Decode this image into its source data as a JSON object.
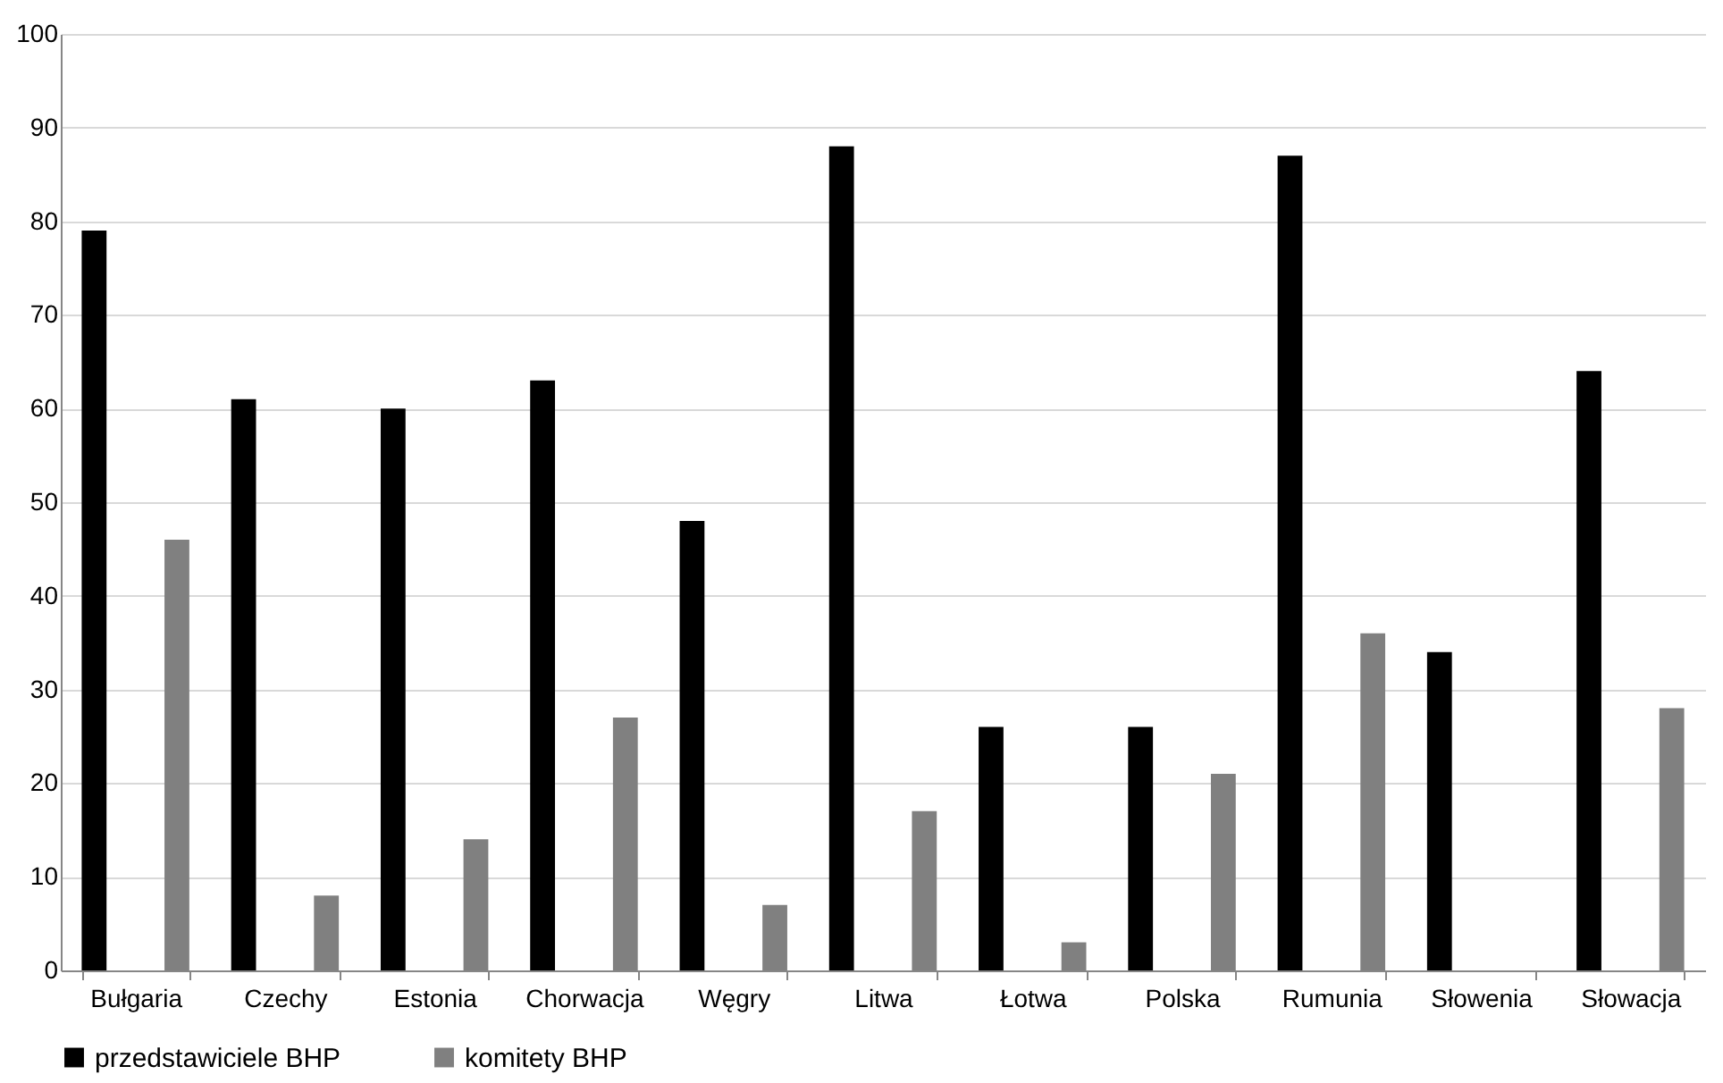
{
  "chart_data": {
    "type": "bar",
    "categories": [
      "Bułgaria",
      "Czechy",
      "Estonia",
      "Chorwacja",
      "Węgry",
      "Litwa",
      "Łotwa",
      "Polska",
      "Rumunia",
      "Słowenia",
      "Słowacja"
    ],
    "series": [
      {
        "name": "przedstawiciele BHP",
        "color": "#000000",
        "values": [
          79,
          61,
          60,
          63,
          48,
          88,
          26,
          26,
          87,
          34,
          64
        ]
      },
      {
        "name": "komitety BHP",
        "color": "#808080",
        "values": [
          46,
          8,
          14,
          27,
          7,
          17,
          3,
          21,
          36,
          null,
          28
        ]
      }
    ],
    "ylim": [
      0,
      100
    ],
    "yticks": [
      0,
      10,
      20,
      30,
      40,
      50,
      60,
      70,
      80,
      90,
      100
    ],
    "grid": "y",
    "legend": "bottom"
  }
}
